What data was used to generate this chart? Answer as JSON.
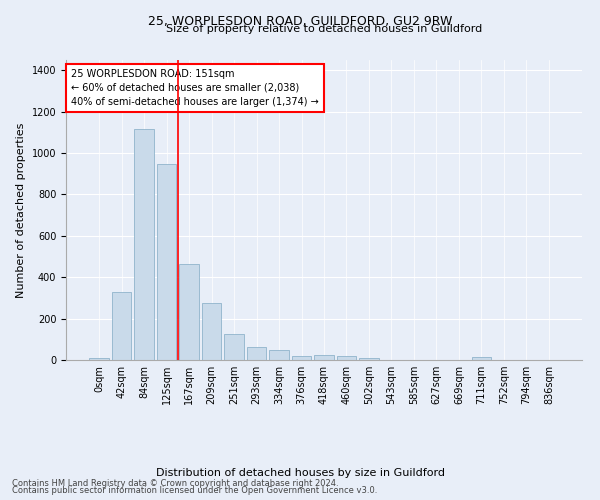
{
  "title": "25, WORPLESDON ROAD, GUILDFORD, GU2 9RW",
  "subtitle": "Size of property relative to detached houses in Guildford",
  "xlabel": "Distribution of detached houses by size in Guildford",
  "ylabel": "Number of detached properties",
  "footer_line1": "Contains HM Land Registry data © Crown copyright and database right 2024.",
  "footer_line2": "Contains public sector information licensed under the Open Government Licence v3.0.",
  "bar_labels": [
    "0sqm",
    "42sqm",
    "84sqm",
    "125sqm",
    "167sqm",
    "209sqm",
    "251sqm",
    "293sqm",
    "334sqm",
    "376sqm",
    "418sqm",
    "460sqm",
    "502sqm",
    "543sqm",
    "585sqm",
    "627sqm",
    "669sqm",
    "711sqm",
    "752sqm",
    "794sqm",
    "836sqm"
  ],
  "bar_values": [
    10,
    330,
    1115,
    945,
    465,
    275,
    128,
    65,
    47,
    18,
    25,
    18,
    10,
    0,
    0,
    0,
    0,
    15,
    0,
    0,
    0
  ],
  "bar_color": "#c9daea",
  "bar_edge_color": "#90b4cc",
  "ylim": [
    0,
    1450
  ],
  "yticks": [
    0,
    200,
    400,
    600,
    800,
    1000,
    1200,
    1400
  ],
  "property_line_x": 3.5,
  "annotation_text_line1": "25 WORPLESDON ROAD: 151sqm",
  "annotation_text_line2": "← 60% of detached houses are smaller (2,038)",
  "annotation_text_line3": "40% of semi-detached houses are larger (1,374) →",
  "bg_color": "#e8eef8",
  "plot_bg_color": "#e8eef8",
  "grid_color": "#ffffff",
  "title_fontsize": 9,
  "subtitle_fontsize": 8,
  "ylabel_fontsize": 8,
  "tick_fontsize": 7,
  "annotation_fontsize": 7,
  "footer_fontsize": 6
}
